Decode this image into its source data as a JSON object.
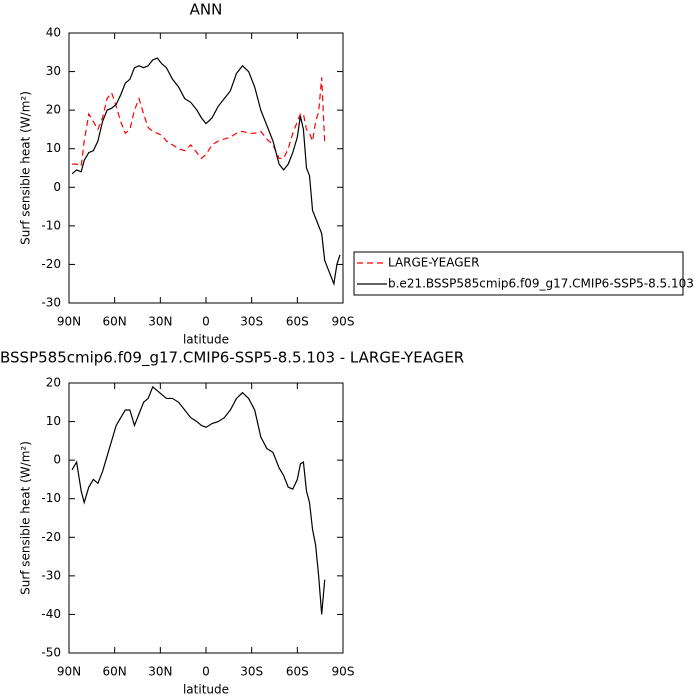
{
  "chart_data": [
    {
      "type": "line",
      "title": "ANN",
      "xlabel": "latitude",
      "ylabel": "Surf sensible heat (W/m²)",
      "x": [
        88,
        85,
        82,
        80,
        77,
        74,
        71,
        68,
        65,
        62,
        59,
        56,
        53,
        50,
        47,
        44,
        41,
        38,
        35,
        32,
        29,
        26,
        22,
        18,
        14,
        10,
        6,
        3,
        0,
        -4,
        -8,
        -12,
        -16,
        -20,
        -24,
        -28,
        -32,
        -36,
        -40,
        -44,
        -48,
        -51,
        -54,
        -57,
        -60,
        -62,
        -64,
        -66,
        -68,
        -70,
        -72,
        -74,
        -76,
        -78,
        -80,
        -82,
        -84,
        -86,
        -88
      ],
      "series": [
        {
          "name": "LARGE-YEAGER",
          "color": "#ff0000",
          "dash": "dashed",
          "values": [
            6,
            6,
            5.5,
            12,
            19,
            17,
            15,
            18,
            23,
            24.5,
            21,
            17,
            14,
            15,
            20,
            23,
            19,
            15.5,
            14.5,
            14,
            13.5,
            12,
            11,
            10,
            9.5,
            11,
            9,
            7.5,
            8.5,
            11,
            12,
            12.5,
            13,
            14,
            14.5,
            14,
            14,
            14.5,
            12.5,
            11,
            7.5,
            7.5,
            10,
            14,
            17,
            19,
            19,
            15,
            14,
            12,
            17,
            19.5,
            28.5,
            11.5,
            null,
            null,
            null,
            null,
            null
          ]
        },
        {
          "name": "b.e21.BSSP585cmip6.f09_g17.CMIP6-SSP5-8.5.103",
          "color": "#000000",
          "dash": "solid",
          "values": [
            3.5,
            4.5,
            4,
            7,
            9,
            9.5,
            12,
            17,
            20,
            20.5,
            21.5,
            24,
            27,
            28,
            31,
            31.5,
            31,
            31.5,
            33,
            33.5,
            32,
            31,
            28,
            26,
            23,
            22,
            20,
            18,
            16.5,
            18,
            21,
            23,
            25,
            29.5,
            31.5,
            30,
            26,
            20,
            16,
            12,
            6,
            4.5,
            6,
            9,
            13,
            18.5,
            15,
            5,
            3,
            -6,
            -8,
            -10,
            -12,
            -19,
            -21,
            -23,
            -25,
            -20,
            -17.5
          ]
        }
      ],
      "xlim": [
        90,
        -90
      ],
      "xticks": [
        {
          "value": 90,
          "label": "90N"
        },
        {
          "value": 60,
          "label": "60N"
        },
        {
          "value": 30,
          "label": "30N"
        },
        0,
        {
          "value": -30,
          "label": "30S"
        },
        {
          "value": -60,
          "label": "60S"
        },
        {
          "value": -90,
          "label": "90S"
        }
      ],
      "ylim": [
        -30,
        40
      ],
      "yticks": [
        -30,
        -20,
        -10,
        0,
        10,
        20,
        30,
        40
      ],
      "legend": "outside-right"
    },
    {
      "type": "line",
      "title": "BSSP585cmip6.f09_g17.CMIP6-SSP5-8.5.103 - LARGE-YEAGER",
      "xlabel": "latitude",
      "ylabel": "Surf sensible heat (W/m²)",
      "x": [
        88,
        85,
        82,
        80,
        77,
        74,
        71,
        68,
        65,
        62,
        59,
        56,
        53,
        50,
        47,
        44,
        41,
        38,
        35,
        32,
        29,
        26,
        22,
        18,
        14,
        10,
        6,
        3,
        0,
        -4,
        -8,
        -12,
        -16,
        -20,
        -24,
        -28,
        -32,
        -36,
        -40,
        -44,
        -48,
        -51,
        -54,
        -57,
        -60,
        -62,
        -64,
        -66,
        -68,
        -70,
        -72,
        -74,
        -76,
        -78
      ],
      "series": [
        {
          "color": "#000000",
          "dash": "solid",
          "values": [
            -2.5,
            -0.5,
            -8,
            -11,
            -7,
            -5,
            -6,
            -3,
            1,
            5,
            9,
            11,
            13,
            13,
            9,
            12,
            15,
            16,
            19,
            18,
            17,
            16,
            16,
            15,
            13,
            11,
            10,
            9,
            8.5,
            9.5,
            10,
            11,
            13,
            16,
            17.5,
            16,
            13,
            6,
            3,
            2,
            -2,
            -4,
            -7,
            -7.5,
            -5,
            -1,
            -0.5,
            -8,
            -11,
            -18,
            -22,
            -30,
            -40,
            -31
          ]
        }
      ],
      "xlim": [
        90,
        -90
      ],
      "xticks": [
        {
          "value": 90,
          "label": "90N"
        },
        {
          "value": 60,
          "label": "60N"
        },
        {
          "value": 30,
          "label": "30N"
        },
        0,
        {
          "value": -30,
          "label": "30S"
        },
        {
          "value": -60,
          "label": "60S"
        },
        {
          "value": -90,
          "label": "90S"
        }
      ],
      "ylim": [
        -50,
        20
      ],
      "yticks": [
        -50,
        -40,
        -30,
        -20,
        -10,
        0,
        10,
        20
      ]
    }
  ]
}
